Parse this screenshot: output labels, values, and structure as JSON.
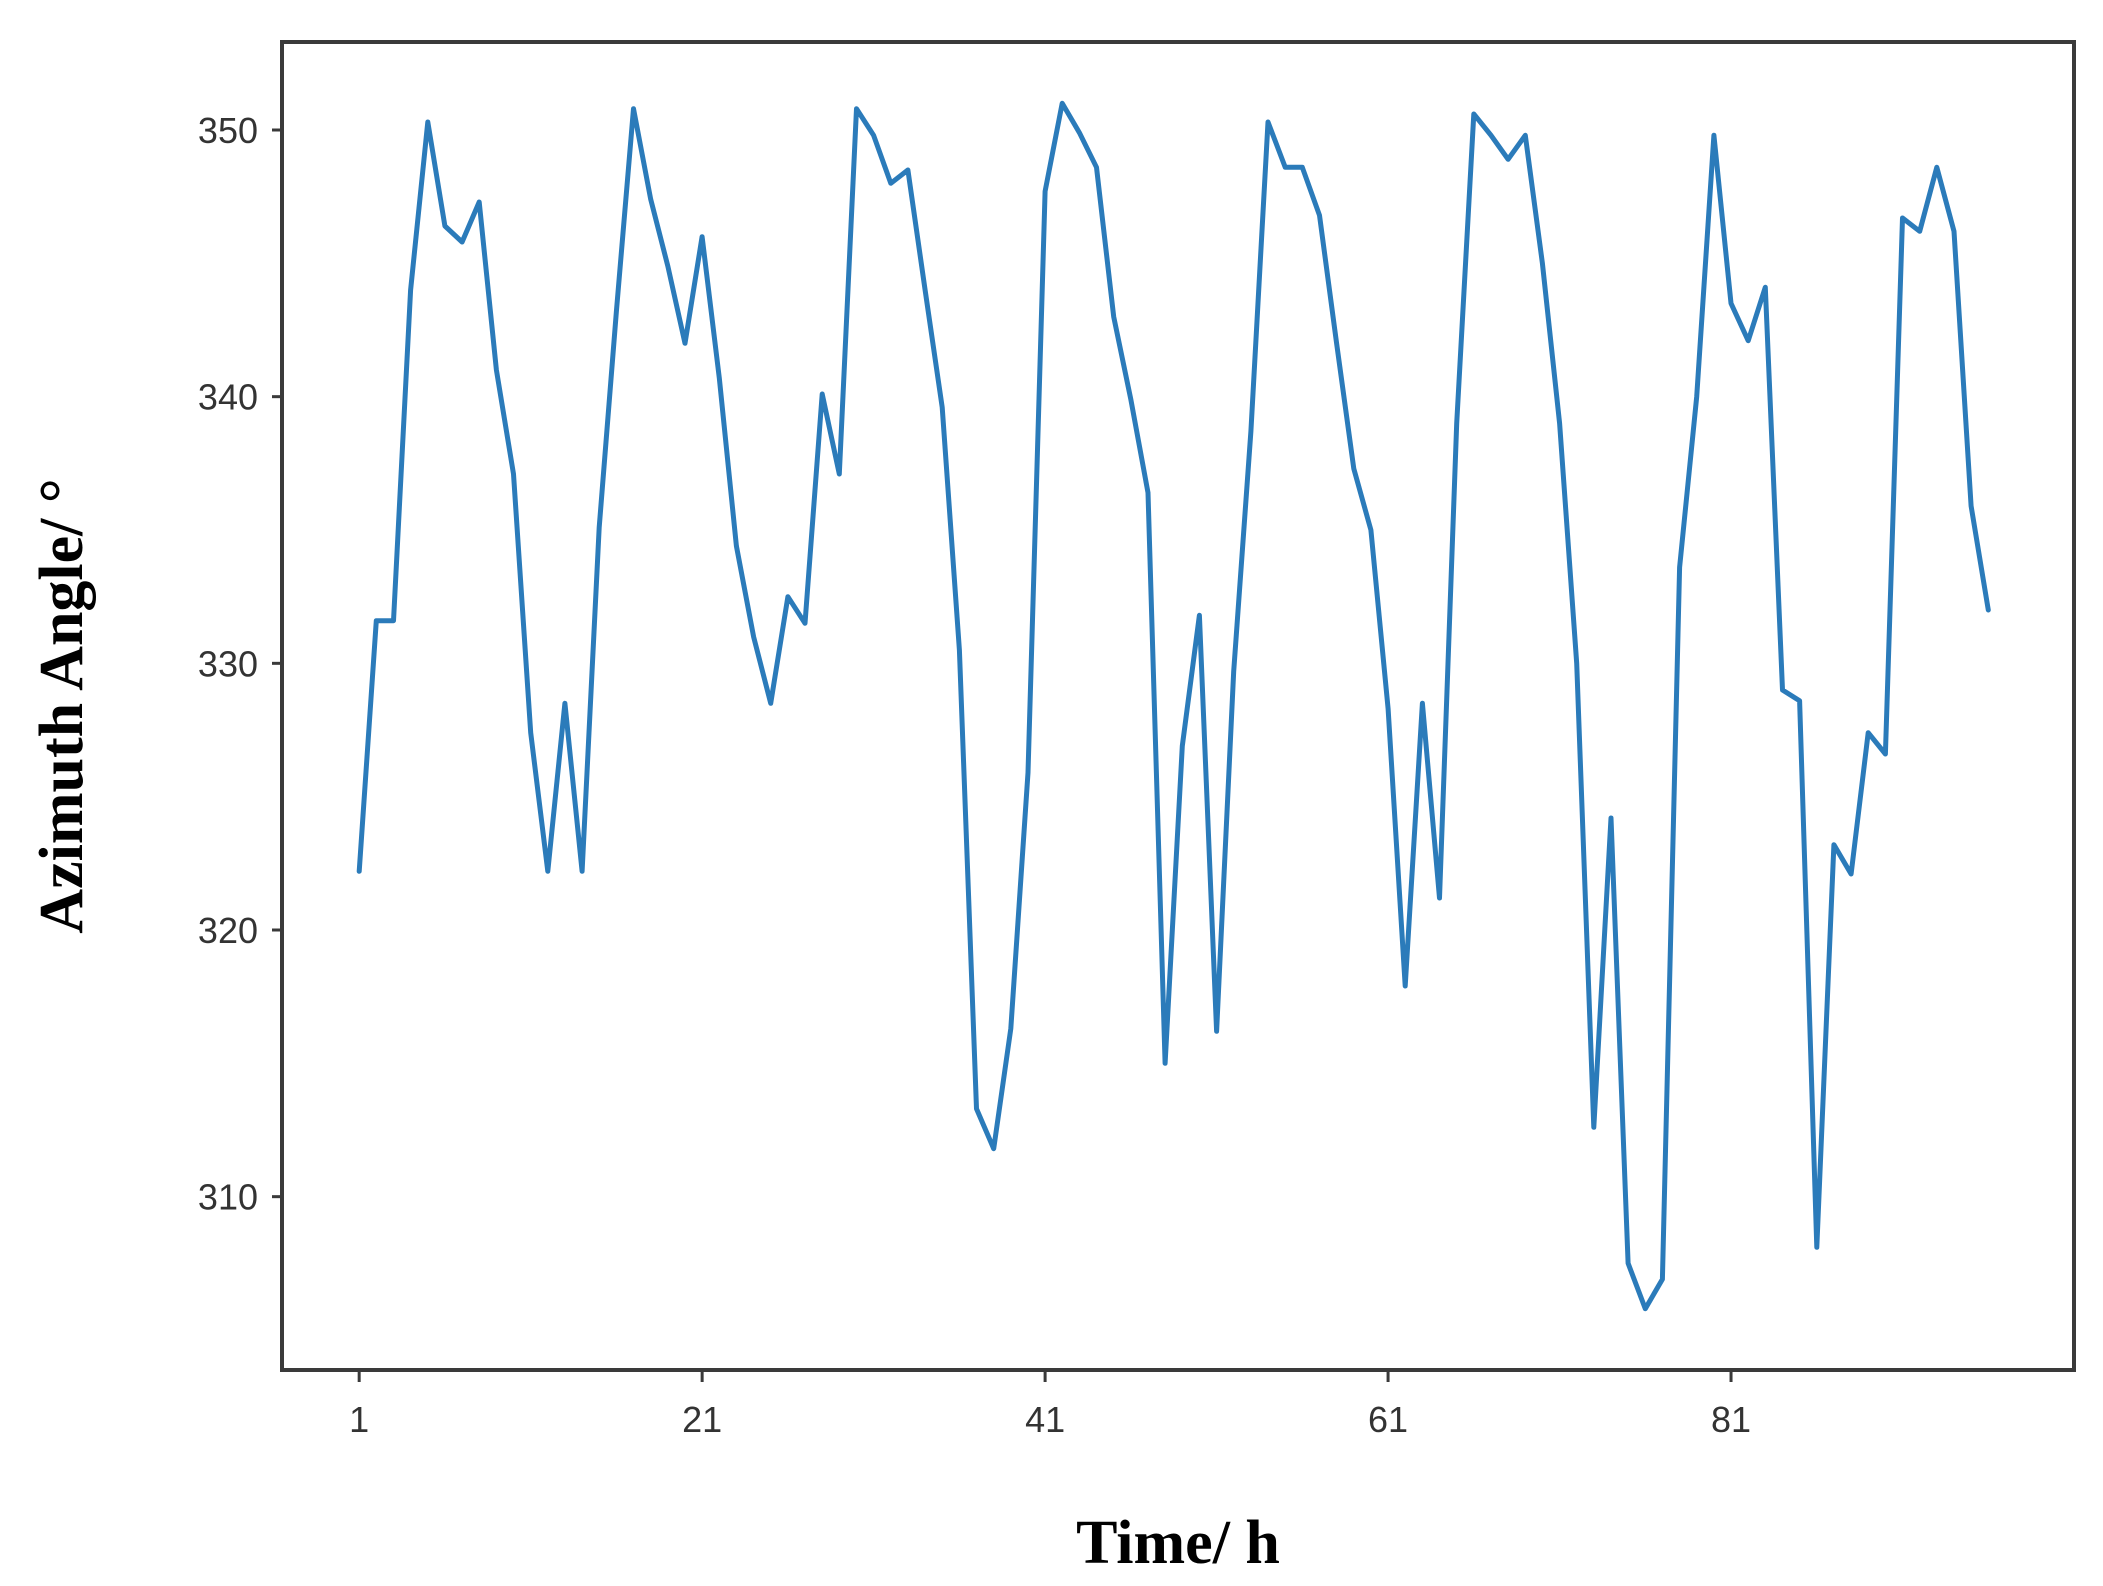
{
  "chart_data": {
    "type": "line",
    "title": "",
    "xlabel": "Time/ h",
    "ylabel": "Azimuth Angle/ °",
    "xlim": [
      -3.5,
      101
    ],
    "ylim": [
      303.5,
      353.3
    ],
    "xticks": [
      1,
      21,
      41,
      61,
      81
    ],
    "yticks": [
      310,
      320,
      330,
      340,
      350
    ],
    "grid": false,
    "legend": "none",
    "series": [
      {
        "color": "#2b7bba",
        "x": [
          1,
          2,
          3,
          4,
          5,
          6,
          7,
          8,
          9,
          10,
          11,
          12,
          13,
          14,
          15,
          16,
          17,
          18,
          19,
          20,
          21,
          22,
          23,
          24,
          25,
          26,
          27,
          28,
          29,
          30,
          31,
          32,
          33,
          34,
          35,
          36,
          37,
          38,
          39,
          40,
          41,
          42,
          43,
          44,
          45,
          46,
          47,
          48,
          49,
          50,
          51,
          52,
          53,
          54,
          55,
          56,
          57,
          58,
          59,
          60,
          61,
          62,
          63,
          64,
          65,
          66,
          67,
          68,
          69,
          70,
          71,
          72,
          73,
          74,
          75,
          76,
          77,
          78,
          79,
          80,
          81,
          82,
          83,
          84,
          85,
          86,
          87,
          88,
          89,
          90,
          91,
          92,
          93,
          94,
          95,
          96
        ],
        "values": [
          322.2,
          331.6,
          331.6,
          344,
          350.3,
          346.4,
          345.8,
          347.3,
          341,
          337.1,
          327.4,
          322.2,
          328.5,
          322.2,
          335.1,
          343.2,
          350.8,
          347.4,
          344.9,
          342,
          346,
          340.7,
          334.4,
          331,
          328.5,
          332.5,
          331.5,
          340.1,
          337.1,
          350.8,
          349.8,
          348,
          348.5,
          344,
          339.6,
          330.5,
          313.3,
          311.8,
          316.3,
          325.9,
          347.7,
          351,
          349.9,
          348.6,
          343,
          339.9,
          336.4,
          315,
          326.9,
          331.8,
          316.2,
          329.7,
          338.7,
          350.3,
          348.6,
          348.6,
          346.8,
          342,
          337.3,
          335,
          328.3,
          317.9,
          328.5,
          321.2,
          339,
          350.6,
          349.8,
          348.9,
          349.8,
          345,
          339,
          330,
          312.6,
          324.2,
          307.5,
          305.8,
          306.9,
          333.6,
          340,
          349.8,
          343.5,
          342.1,
          344.1,
          329,
          328.6,
          308.1,
          323.2,
          322.1,
          327.4,
          326.6,
          346.7,
          346.2,
          348.6,
          346.2,
          335.9,
          332
        ]
      }
    ]
  }
}
